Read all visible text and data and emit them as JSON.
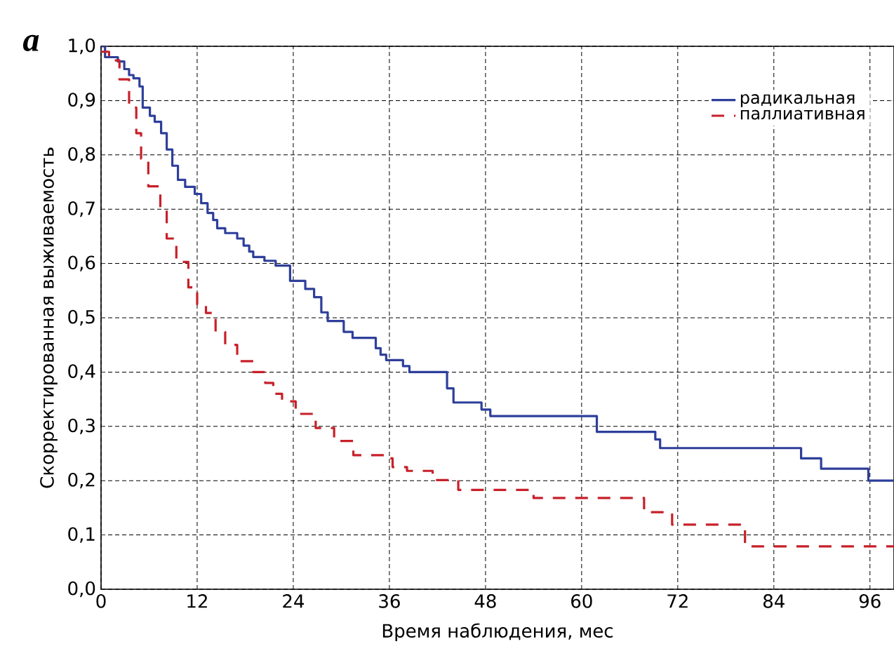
{
  "chart_data": {
    "type": "step",
    "xlabel": "Время наблюдения, мес",
    "ylabel": "Скорректированная выживаемость",
    "annotations": [
      "a"
    ],
    "xlim": [
      0,
      99
    ],
    "ylim": [
      0,
      1
    ],
    "xticks": [
      0,
      12,
      24,
      36,
      48,
      60,
      72,
      84,
      96
    ],
    "yticks": [
      {
        "value": 0,
        "label": "0,0"
      },
      {
        "value": 0.1,
        "label": "0,1"
      },
      {
        "value": 0.2,
        "label": "0,2"
      },
      {
        "value": 0.3,
        "label": "0,3"
      },
      {
        "value": 0.4,
        "label": "0,4"
      },
      {
        "value": 0.5,
        "label": "0,5"
      },
      {
        "value": 0.6,
        "label": "0,6"
      },
      {
        "value": 0.7,
        "label": "0,7"
      },
      {
        "value": 0.8,
        "label": "0,8"
      },
      {
        "value": 0.9,
        "label": "0,9"
      },
      {
        "value": 1,
        "label": "1,0"
      }
    ],
    "grid": true,
    "legend": "top right",
    "marker": "none",
    "series": [
      {
        "name": "радикальная",
        "color": "#2e3f9a",
        "line_style": "solid",
        "x": [
          0,
          0.5,
          2.1,
          2.9,
          3.5,
          4.05,
          4.8,
          5.2,
          6.1,
          6.7,
          7.5,
          8.2,
          8.9,
          9.6,
          10.5,
          11.7,
          12.5,
          13.3,
          14.0,
          14.5,
          15.5,
          17.0,
          17.8,
          18.5,
          19.0,
          20.4,
          21.8,
          23.6,
          25.5,
          26.6,
          27.5,
          28.3,
          30.3,
          31.4,
          34.3,
          34.9,
          35.6,
          37.7,
          38.5,
          43.2,
          44,
          47.5,
          48.6,
          61.9,
          69.2,
          69.8,
          87.4,
          89.9,
          95.8,
          99
        ],
        "values": [
          1.0,
          0.98,
          0.972,
          0.958,
          0.947,
          0.941,
          0.926,
          0.887,
          0.872,
          0.861,
          0.84,
          0.81,
          0.78,
          0.754,
          0.741,
          0.728,
          0.711,
          0.693,
          0.68,
          0.665,
          0.656,
          0.646,
          0.633,
          0.622,
          0.612,
          0.605,
          0.596,
          0.568,
          0.553,
          0.538,
          0.51,
          0.494,
          0.474,
          0.463,
          0.444,
          0.432,
          0.422,
          0.411,
          0.4,
          0.37,
          0.344,
          0.331,
          0.319,
          0.29,
          0.276,
          0.26,
          0.241,
          0.222,
          0.2,
          0.2
        ]
      },
      {
        "name": "паллиативная",
        "color": "#c8202a",
        "line_style": "dashed",
        "x": [
          0,
          1,
          2.3,
          3.5,
          4.4,
          5.0,
          5.9,
          7.4,
          8.2,
          9.4,
          10.9,
          12.0,
          13.1,
          14.3,
          15.5,
          17.0,
          19.0,
          20.5,
          21.5,
          22.6,
          24.3,
          26.8,
          29.1,
          31.5,
          35.5,
          36.4,
          38.2,
          41.4,
          44.6,
          54,
          67.8,
          71.3,
          80.4,
          99
        ],
        "values": [
          0.99,
          0.974,
          0.939,
          0.887,
          0.84,
          0.793,
          0.742,
          0.698,
          0.646,
          0.603,
          0.556,
          0.525,
          0.509,
          0.474,
          0.45,
          0.42,
          0.4,
          0.38,
          0.36,
          0.346,
          0.323,
          0.297,
          0.273,
          0.247,
          0.241,
          0.225,
          0.218,
          0.201,
          0.183,
          0.168,
          0.142,
          0.119,
          0.079,
          0.079
        ]
      }
    ]
  }
}
